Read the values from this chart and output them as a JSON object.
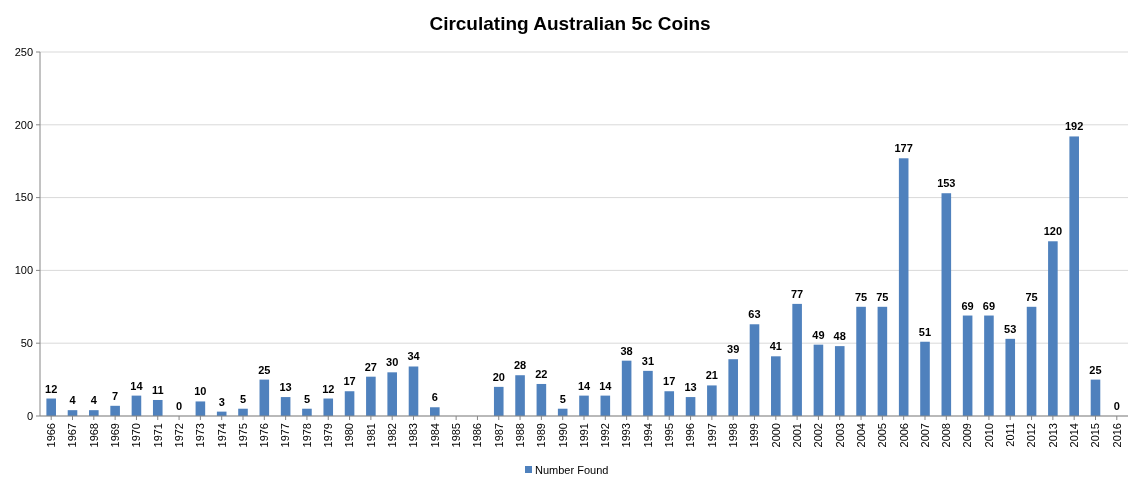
{
  "chart_data": {
    "type": "bar",
    "title": "Circulating Australian 5c Coins",
    "categories": [
      "1966",
      "1967",
      "1968",
      "1969",
      "1970",
      "1971",
      "1972",
      "1973",
      "1974",
      "1975",
      "1976",
      "1977",
      "1978",
      "1979",
      "1980",
      "1981",
      "1982",
      "1983",
      "1984",
      "1985",
      "1986",
      "1987",
      "1988",
      "1989",
      "1990",
      "1991",
      "1992",
      "1993",
      "1994",
      "1995",
      "1996",
      "1997",
      "1998",
      "1999",
      "2000",
      "2001",
      "2002",
      "2003",
      "2004",
      "2005",
      "2006",
      "2007",
      "2008",
      "2009",
      "2010",
      "2011",
      "2012",
      "2013",
      "2014",
      "2015",
      "2016"
    ],
    "series": [
      {
        "name": "Number Found",
        "color": "#4f81bd",
        "values": [
          12,
          4,
          4,
          7,
          14,
          11,
          0,
          10,
          3,
          5,
          25,
          13,
          5,
          12,
          17,
          27,
          30,
          34,
          6,
          null,
          null,
          20,
          28,
          22,
          5,
          14,
          14,
          38,
          31,
          17,
          13,
          21,
          39,
          63,
          41,
          77,
          49,
          48,
          75,
          75,
          177,
          51,
          153,
          69,
          69,
          53,
          75,
          120,
          192,
          25,
          0
        ]
      }
    ],
    "ylim": [
      0,
      250
    ],
    "yticks": [
      0,
      50,
      100,
      150,
      200,
      250
    ],
    "grid": "y",
    "legend": "bottom",
    "data_labels": true
  }
}
